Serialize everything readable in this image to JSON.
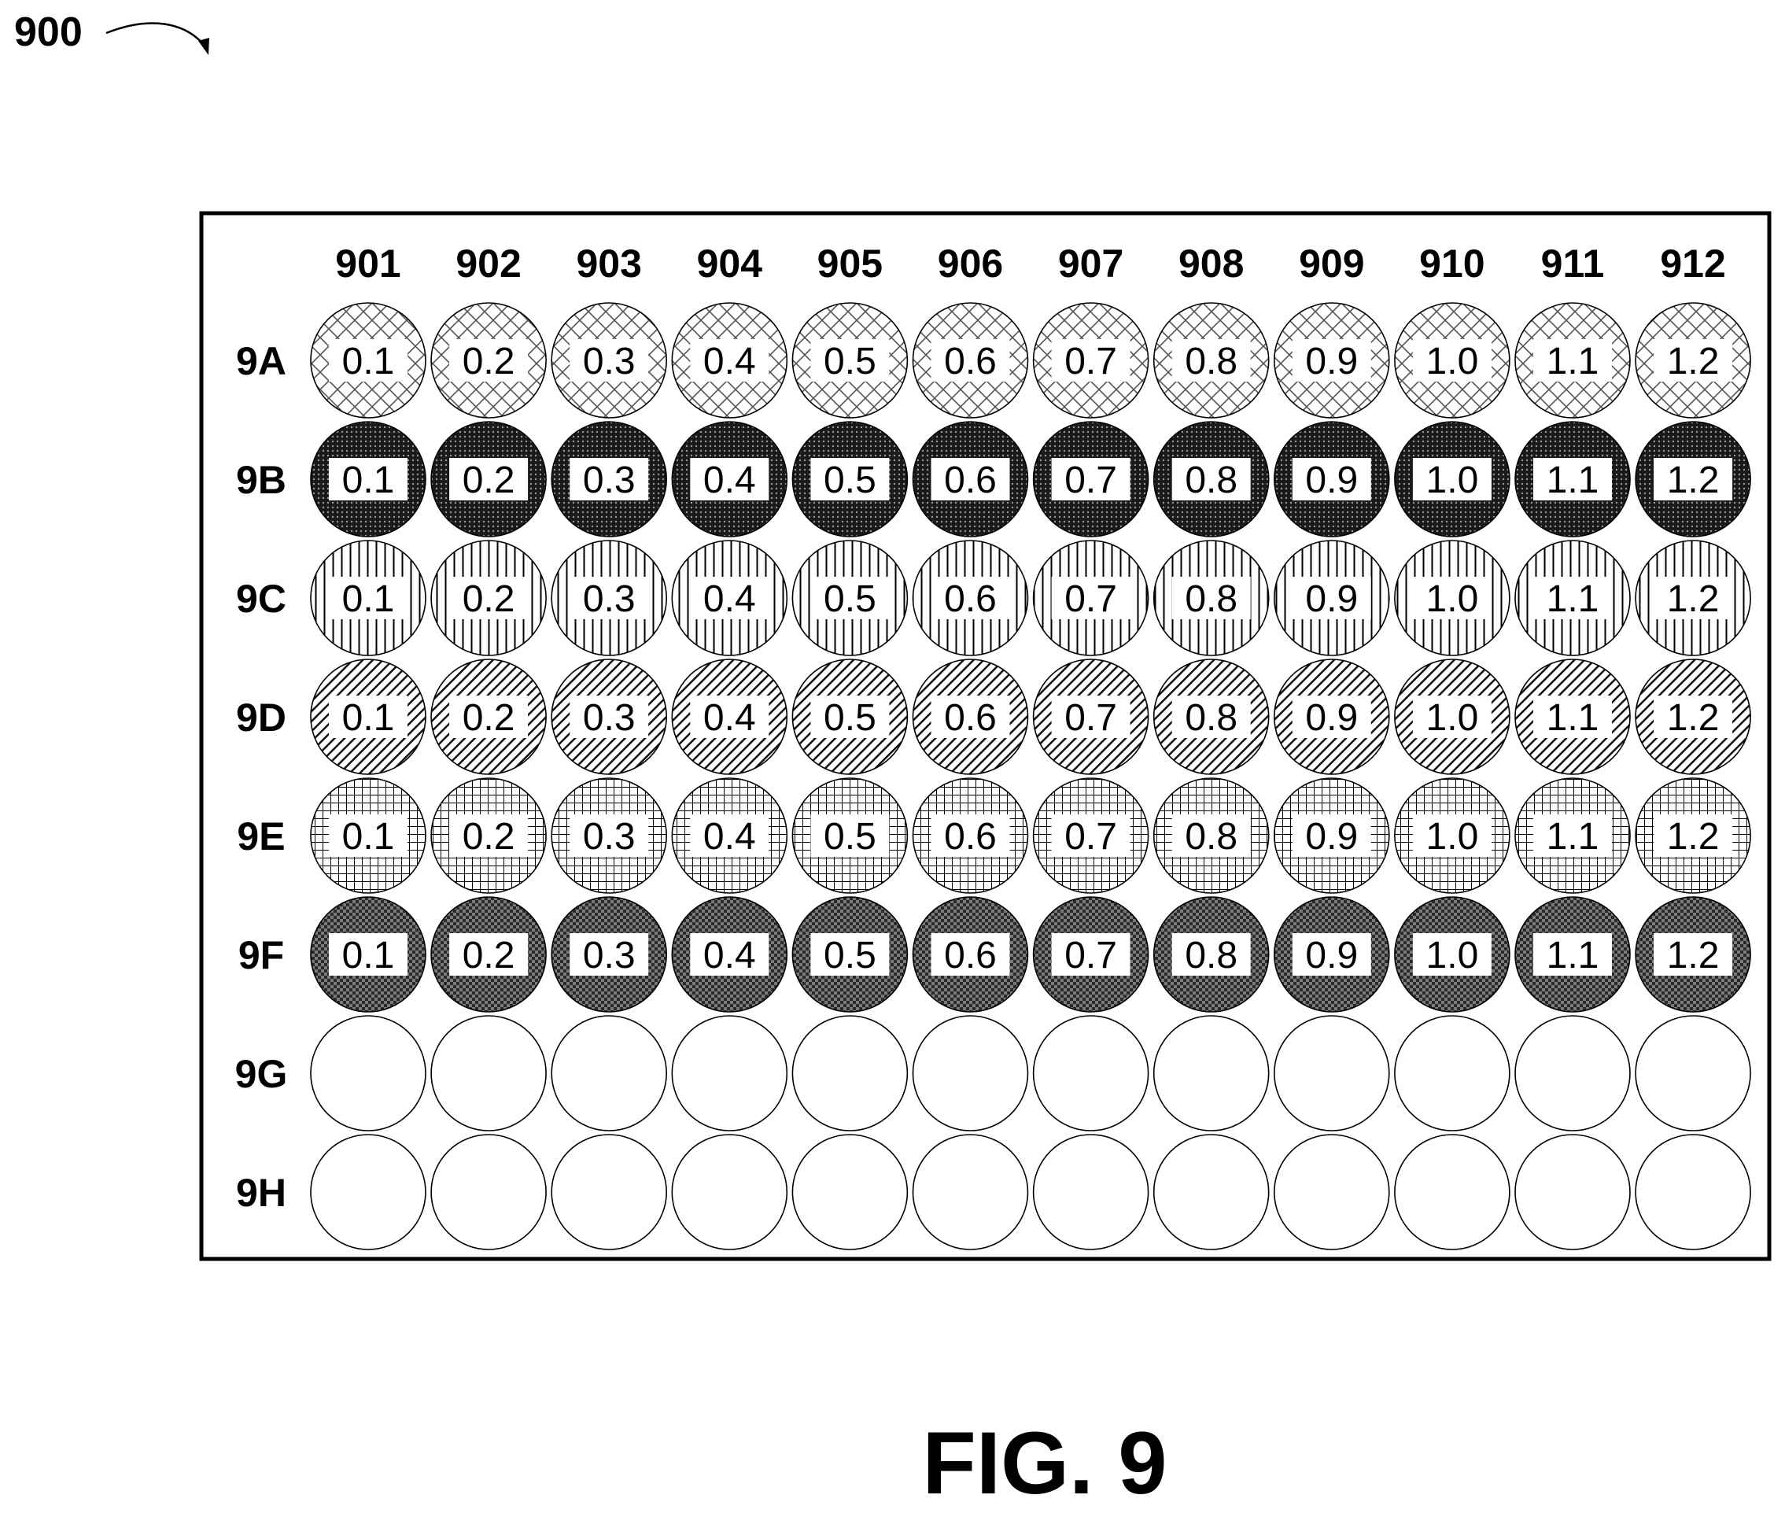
{
  "ref_label": "900",
  "figure_caption": "FIG. 9",
  "columns": [
    "901",
    "902",
    "903",
    "904",
    "905",
    "906",
    "907",
    "908",
    "909",
    "910",
    "911",
    "912"
  ],
  "rows": [
    {
      "label": "9A",
      "fill": "crosshatch-diagonal-light",
      "values": [
        "0.1",
        "0.2",
        "0.3",
        "0.4",
        "0.5",
        "0.6",
        "0.7",
        "0.8",
        "0.9",
        "1.0",
        "1.1",
        "1.2"
      ]
    },
    {
      "label": "9B",
      "fill": "dense-dots-dark",
      "values": [
        "0.1",
        "0.2",
        "0.3",
        "0.4",
        "0.5",
        "0.6",
        "0.7",
        "0.8",
        "0.9",
        "1.0",
        "1.1",
        "1.2"
      ]
    },
    {
      "label": "9C",
      "fill": "vertical-lines",
      "values": [
        "0.1",
        "0.2",
        "0.3",
        "0.4",
        "0.5",
        "0.6",
        "0.7",
        "0.8",
        "0.9",
        "1.0",
        "1.1",
        "1.2"
      ]
    },
    {
      "label": "9D",
      "fill": "diagonal-lines",
      "values": [
        "0.1",
        "0.2",
        "0.3",
        "0.4",
        "0.5",
        "0.6",
        "0.7",
        "0.8",
        "0.9",
        "1.0",
        "1.1",
        "1.2"
      ]
    },
    {
      "label": "9E",
      "fill": "grid",
      "values": [
        "0.1",
        "0.2",
        "0.3",
        "0.4",
        "0.5",
        "0.6",
        "0.7",
        "0.8",
        "0.9",
        "1.0",
        "1.1",
        "1.2"
      ]
    },
    {
      "label": "9F",
      "fill": "checker-dark",
      "values": [
        "0.1",
        "0.2",
        "0.3",
        "0.4",
        "0.5",
        "0.6",
        "0.7",
        "0.8",
        "0.9",
        "1.0",
        "1.1",
        "1.2"
      ]
    },
    {
      "label": "9G",
      "fill": "empty",
      "values": []
    },
    {
      "label": "9H",
      "fill": "empty",
      "values": []
    }
  ]
}
